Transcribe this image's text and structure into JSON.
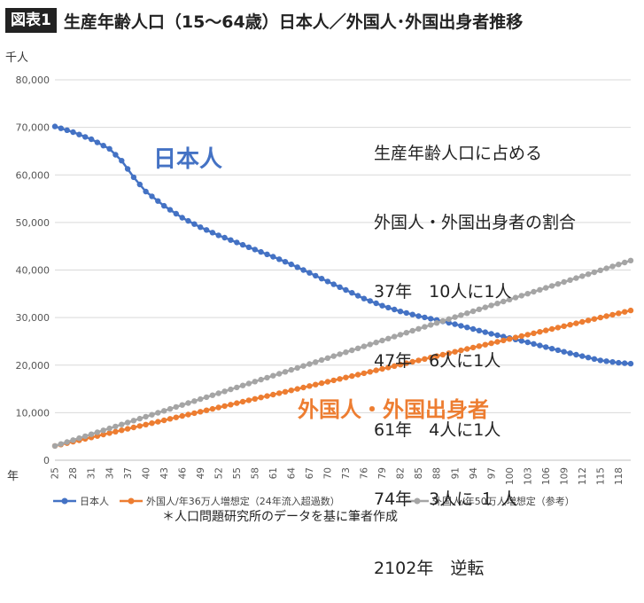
{
  "header": {
    "badge": "図表1",
    "title": "生産年齢人口（15〜64歳）日本人／外国人･外国出身者推移"
  },
  "unit_label": "千人",
  "annotation_lines": [
    "生産年齢人口に占める",
    "外国人・外国出身者の割合",
    "37年　10人に1人",
    "47年　6人に1人",
    "61年　4人に1人",
    "74年　3人に １ 人",
    "2102年　逆転"
  ],
  "source_note": "＊人口問題研究所のデータを基に筆者作成",
  "colors": {
    "japanese": "#4472C4",
    "foreign36": "#ED7D31",
    "foreign50": "#A5A5A5"
  },
  "chart_data": {
    "type": "line",
    "title": "生産年齢人口（15〜64歳）日本人／外国人･外国出身者推移",
    "xlabel": "年",
    "ylabel": "千人",
    "ylim": [
      0,
      80000
    ],
    "xlim": [
      25,
      120
    ],
    "yticks": [
      "0",
      "10,000",
      "20,000",
      "30,000",
      "40,000",
      "50,000",
      "60,000",
      "70,000",
      "80,000"
    ],
    "xticks": [
      "25",
      "28",
      "31",
      "34",
      "37",
      "40",
      "43",
      "46",
      "49",
      "52",
      "55",
      "58",
      "61",
      "64",
      "67",
      "70",
      "73",
      "76",
      "79",
      "82",
      "85",
      "88",
      "91",
      "94",
      "97",
      "100",
      "103",
      "106",
      "109",
      "112",
      "115",
      "118"
    ],
    "grid": true,
    "legend_position": "bottom",
    "series": [
      {
        "name": "日本人",
        "key": "japanese",
        "anchors": [
          [
            25,
            70200
          ],
          [
            28,
            69000
          ],
          [
            31,
            67500
          ],
          [
            34,
            65500
          ],
          [
            36,
            63000
          ],
          [
            38,
            59500
          ],
          [
            40,
            56500
          ],
          [
            43,
            53500
          ],
          [
            46,
            51000
          ],
          [
            49,
            49000
          ],
          [
            52,
            47300
          ],
          [
            55,
            45800
          ],
          [
            58,
            44300
          ],
          [
            61,
            42800
          ],
          [
            64,
            41200
          ],
          [
            67,
            39400
          ],
          [
            70,
            37600
          ],
          [
            73,
            35800
          ],
          [
            76,
            34000
          ],
          [
            79,
            32500
          ],
          [
            82,
            31300
          ],
          [
            85,
            30300
          ],
          [
            88,
            29500
          ],
          [
            91,
            28600
          ],
          [
            94,
            27600
          ],
          [
            97,
            26600
          ],
          [
            100,
            25700
          ],
          [
            103,
            24800
          ],
          [
            106,
            23800
          ],
          [
            109,
            22800
          ],
          [
            112,
            21900
          ],
          [
            115,
            21000
          ],
          [
            118,
            20500
          ],
          [
            120,
            20300
          ]
        ]
      },
      {
        "name": "外国人/年36万人増想定（24年流入超過数）",
        "key": "foreign36",
        "anchors": [
          [
            25,
            3000
          ],
          [
            120,
            31500
          ]
        ]
      },
      {
        "name": "外国人/年50万人増想定（参考）",
        "key": "foreign50",
        "anchors": [
          [
            25,
            3000
          ],
          [
            120,
            42000
          ]
        ]
      }
    ],
    "annotations": [
      {
        "text": "日本人",
        "series": "japanese"
      },
      {
        "text": "外国人・外国出身者",
        "series": "foreign36"
      }
    ]
  }
}
